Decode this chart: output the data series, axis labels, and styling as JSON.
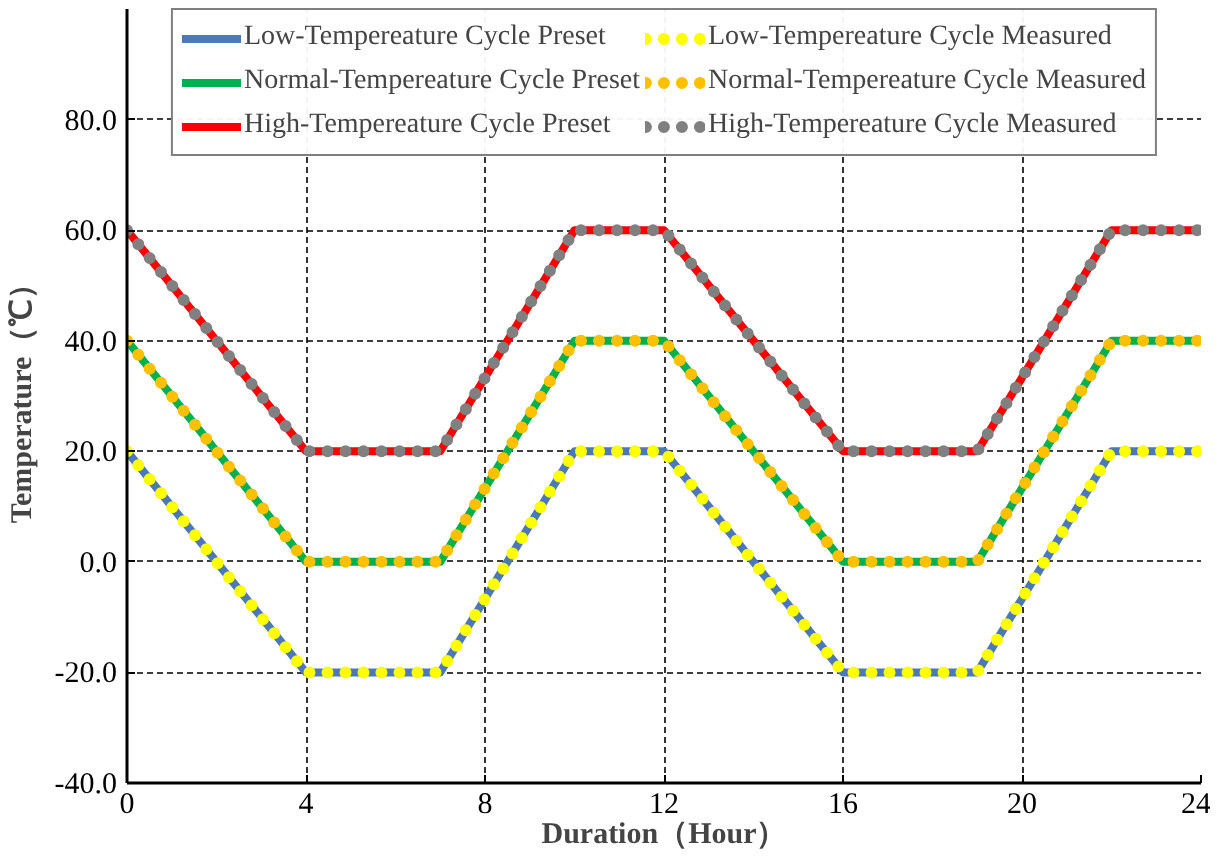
{
  "chart_data": {
    "type": "line",
    "xlabel": "Duration（Hour）",
    "ylabel": "Temperature（℃）",
    "x": [
      0,
      4,
      7,
      10,
      12,
      16,
      19,
      22,
      24
    ],
    "series": [
      {
        "name": "Low-Tempereature Cycle Preset",
        "color": "#4a78b8",
        "line_style": "solid",
        "values": [
          20,
          -20,
          -20,
          20,
          20,
          -20,
          -20,
          20,
          20
        ]
      },
      {
        "name": "Normal-Tempereature Cycle Preset",
        "color": "#00b050",
        "line_style": "solid",
        "values": [
          40,
          0,
          0,
          40,
          40,
          0,
          0,
          40,
          40
        ]
      },
      {
        "name": "High-Tempereature Cycle Preset",
        "color": "#ff0000",
        "line_style": "solid",
        "values": [
          60,
          20,
          20,
          60,
          60,
          20,
          20,
          60,
          60
        ]
      },
      {
        "name": "Low-Tempereature Cycle Measured",
        "color": "#ffff00",
        "line_style": "dotted",
        "values": [
          20,
          -20,
          -20,
          20,
          20,
          -20,
          -20,
          20,
          20
        ]
      },
      {
        "name": "Normal-Tempereature Cycle Measured",
        "color": "#ffc000",
        "line_style": "dotted",
        "values": [
          40,
          0,
          0,
          40,
          40,
          0,
          0,
          40,
          40
        ]
      },
      {
        "name": "High-Tempereature Cycle Measured",
        "color": "#808080",
        "line_style": "dotted",
        "values": [
          60,
          20,
          20,
          60,
          60,
          20,
          20,
          60,
          60
        ]
      }
    ],
    "xlim": [
      0,
      24
    ],
    "xticks": [
      0,
      4,
      8,
      12,
      16,
      20,
      24
    ],
    "ylim": [
      -40,
      100
    ],
    "yticks": [
      {
        "value": -40,
        "label": "-40.0"
      },
      {
        "value": -20,
        "label": "-20.0"
      },
      {
        "value": 0,
        "label": "0.0"
      },
      {
        "value": 20,
        "label": "20.0"
      },
      {
        "value": 40,
        "label": "40.0"
      },
      {
        "value": 60,
        "label": "60.0"
      },
      {
        "value": 80,
        "label": "80.0"
      }
    ],
    "grid": true,
    "legend": "top",
    "marker": "none"
  }
}
